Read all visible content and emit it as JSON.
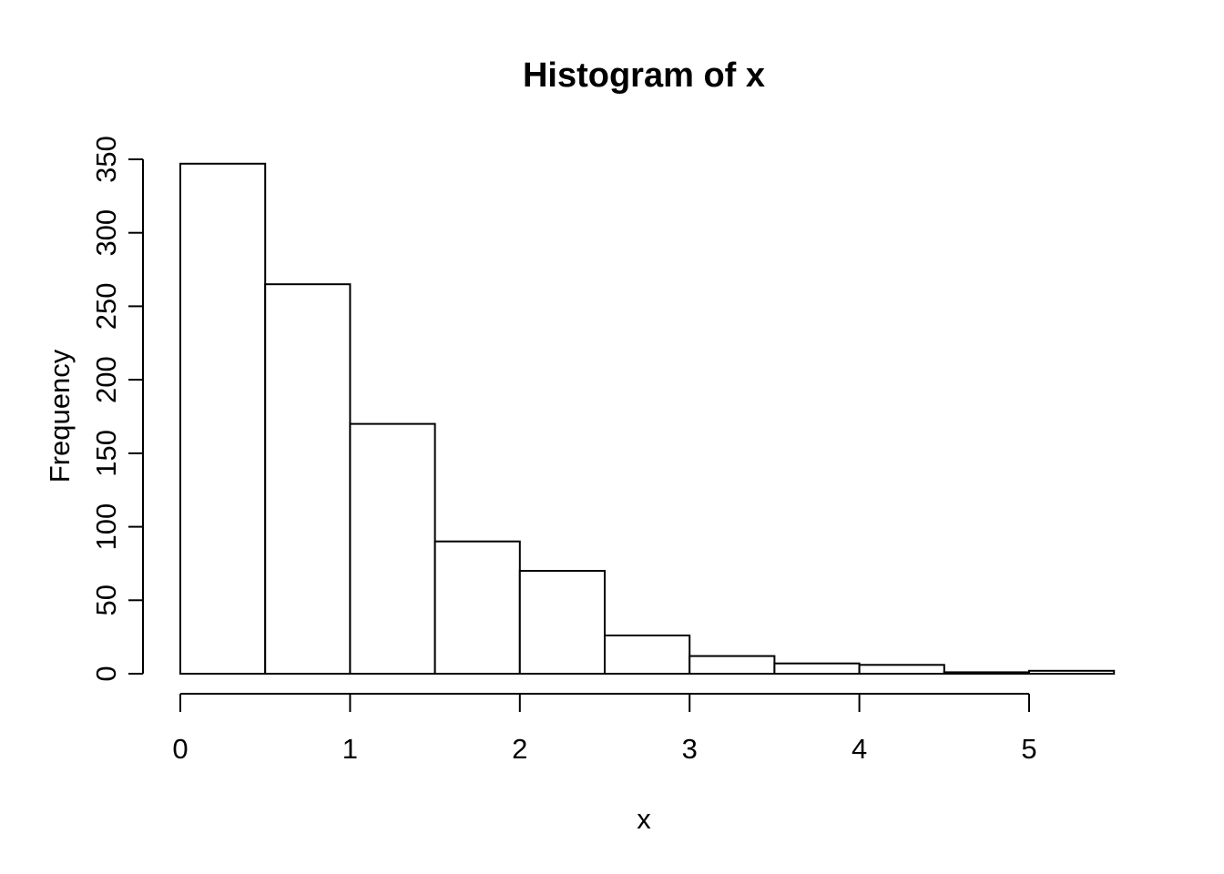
{
  "figure": {
    "background": "#ffffff",
    "foreground": "#000000"
  },
  "chart_data": {
    "type": "bar",
    "subtype": "histogram",
    "title": "Histogram of x",
    "xlabel": "x",
    "ylabel": "Frequency",
    "bin_edges": [
      0,
      0.5,
      1,
      1.5,
      2,
      2.5,
      3,
      3.5,
      4,
      4.5,
      5,
      5.5
    ],
    "counts": [
      347,
      265,
      170,
      90,
      70,
      26,
      12,
      7,
      6,
      1,
      2
    ],
    "x_ticks": [
      0,
      1,
      2,
      3,
      4,
      5
    ],
    "y_ticks": [
      0,
      50,
      100,
      150,
      200,
      250,
      300,
      350
    ],
    "xlim": [
      0,
      5.5
    ],
    "ylim": [
      0,
      350
    ],
    "bar_fill": "#ffffff",
    "bar_stroke": "#000000",
    "axis_color": "#000000",
    "grid": "off",
    "legend": "none"
  }
}
